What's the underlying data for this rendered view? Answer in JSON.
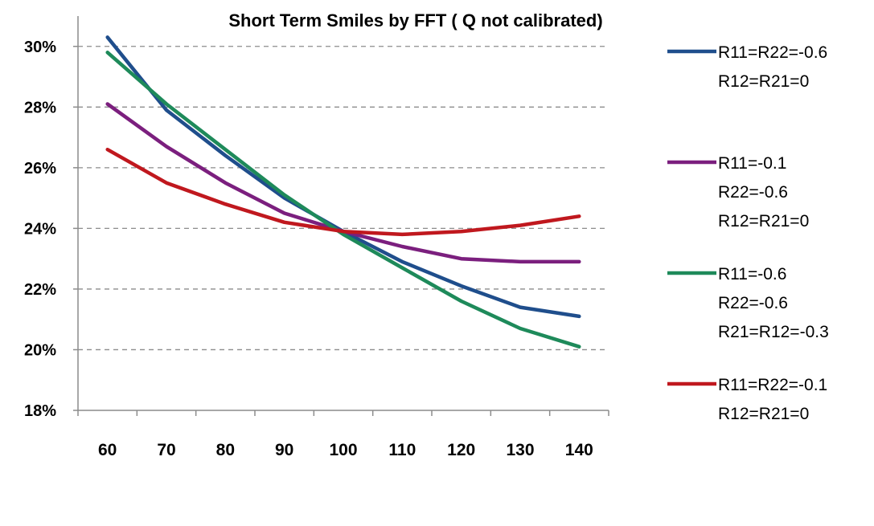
{
  "chart_data": {
    "type": "line",
    "title": "Short Term Smiles by FFT ( Q not calibrated)",
    "xlabel": "",
    "ylabel": "",
    "x": [
      60,
      70,
      80,
      90,
      100,
      110,
      120,
      130,
      140
    ],
    "xlim": [
      55,
      145
    ],
    "ylim": [
      18,
      31
    ],
    "y_ticks": [
      18,
      20,
      22,
      24,
      26,
      28,
      30
    ],
    "y_tick_labels": [
      "18%",
      "20%",
      "22%",
      "24%",
      "26%",
      "28%",
      "30%"
    ],
    "x_tick_labels": [
      "60",
      "70",
      "80",
      "90",
      "100",
      "110",
      "120",
      "130",
      "140"
    ],
    "grid": "horizontal dashed",
    "legend_position": "right",
    "series": [
      {
        "name_lines": [
          "R11=R22=-0.6",
          "R12=R21=0"
        ],
        "color": "#1f4e8c",
        "values": [
          30.3,
          27.9,
          26.4,
          25.0,
          23.9,
          22.9,
          22.1,
          21.4,
          21.1
        ]
      },
      {
        "name_lines": [
          "R11=-0.1",
          "R22=-0.6",
          "R12=R21=0"
        ],
        "color": "#7b1f7e",
        "values": [
          28.1,
          26.7,
          25.5,
          24.5,
          23.9,
          23.4,
          23.0,
          22.9,
          22.9
        ]
      },
      {
        "name_lines": [
          "R11=-0.6",
          "R22=-0.6",
          "R21=R12=-0.3"
        ],
        "color": "#1e8a5a",
        "values": [
          29.8,
          28.1,
          26.6,
          25.1,
          23.8,
          22.7,
          21.6,
          20.7,
          20.1
        ]
      },
      {
        "name_lines": [
          "R11=R22=-0.1",
          "R12=R21=0"
        ],
        "color": "#c0181e",
        "values": [
          26.6,
          25.5,
          24.8,
          24.2,
          23.9,
          23.8,
          23.9,
          24.1,
          24.4
        ]
      }
    ]
  }
}
